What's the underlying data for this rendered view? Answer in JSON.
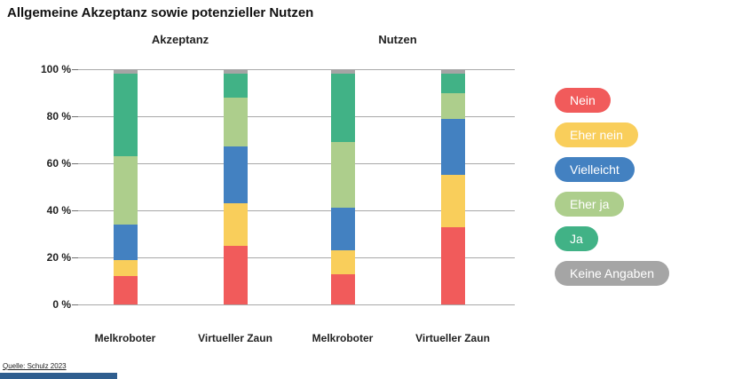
{
  "title": "Allgemeine Akzeptanz sowie potenzieller Nutzen",
  "source": "Quelle: Schulz 2023",
  "footer_bar_color": "#2F5E8F",
  "chart_data": {
    "type": "bar",
    "subtype": "stacked-percent-column",
    "title": "Allgemeine Akzeptanz sowie potenzieller Nutzen",
    "group_labels": [
      "Akzeptanz",
      "Nutzen"
    ],
    "series": [
      "Nein",
      "Eher nein",
      "Vielleicht",
      "Eher ja",
      "Ja",
      "Keine Angaben"
    ],
    "colors": [
      "#F15B5B",
      "#F9CE5B",
      "#4381C1",
      "#ADCE8C",
      "#41B286",
      "#A5A5A5"
    ],
    "y_ticks": [
      "100 %",
      "80 %",
      "60 %",
      "40 %",
      "20 %",
      "0 %"
    ],
    "ylim": [
      0,
      100
    ],
    "ylabel": "",
    "xlabel": "",
    "grid": true,
    "legend_position": "right",
    "groups": [
      {
        "label": "Akzeptanz",
        "bars": [
          {
            "label": "Melkroboter",
            "values": [
              12,
              7,
              15,
              29,
              35,
              2
            ]
          },
          {
            "label": "Virtueller Zaun",
            "values": [
              25,
              18,
              24,
              21,
              10,
              2
            ]
          }
        ]
      },
      {
        "label": "Nutzen",
        "bars": [
          {
            "label": "Melkroboter",
            "values": [
              13,
              10,
              18,
              28,
              29,
              2
            ]
          },
          {
            "label": "Virtueller Zaun",
            "values": [
              33,
              22,
              24,
              11,
              8,
              2
            ]
          }
        ]
      }
    ]
  }
}
